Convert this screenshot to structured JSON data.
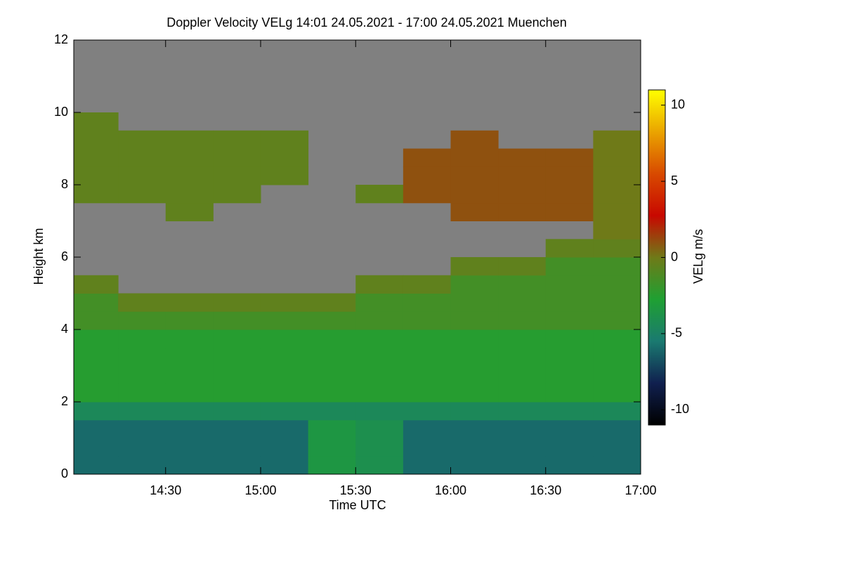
{
  "chart_data": {
    "type": "heatmap",
    "title": "Doppler Velocity VELg   14:01 24.05.2021 - 17:00 24.05.2021 Muenchen",
    "x_label": "Time UTC",
    "y_label": "Height km",
    "colorbar_label": "VELg m/s",
    "xbins": [
      "14:01",
      "14:15",
      "14:30",
      "14:45",
      "15:00",
      "15:15",
      "15:30",
      "15:45",
      "16:00",
      "16:15",
      "16:30",
      "16:45",
      "17:00"
    ],
    "ybins": [
      0,
      0.5,
      1,
      1.5,
      2,
      2.5,
      3,
      3.5,
      4,
      4.5,
      5,
      5.5,
      6,
      6.5,
      7,
      7.5,
      8,
      8.5,
      9,
      9.5,
      10,
      10.5,
      11,
      11.5,
      12
    ],
    "z": [
      [
        -6,
        -6,
        -6,
        -6,
        -6,
        -3.5,
        -4,
        -6,
        -6,
        -6,
        -6,
        -6
      ],
      [
        -6,
        -6,
        -6,
        -6,
        -6,
        -3.5,
        -4,
        -6,
        -6,
        -6,
        -6,
        -6
      ],
      [
        -6,
        -6,
        -6,
        -6,
        -6,
        -3.5,
        -4,
        -6,
        -6,
        -6,
        -6,
        -6
      ],
      [
        -4.5,
        -4.5,
        -4.5,
        -4.5,
        -4.5,
        -4.5,
        -4.5,
        -4.5,
        -4.5,
        -4.5,
        -4.5,
        -4.5
      ],
      [
        -2.5,
        -2.5,
        -2.5,
        -2.5,
        -2.5,
        -2.5,
        -2.5,
        -2.5,
        -2.5,
        -2.5,
        -2.5,
        -2.5
      ],
      [
        -2.5,
        -2.5,
        -2.5,
        -2.5,
        -2.5,
        -2.5,
        -2.5,
        -2.5,
        -2.5,
        -2.5,
        -2.5,
        -2.5
      ],
      [
        -2.5,
        -2.5,
        -2.5,
        -2.5,
        -2.5,
        -2.5,
        -2.5,
        -2.5,
        -2.5,
        -2.5,
        -2.5,
        -2.5
      ],
      [
        -2.5,
        -2.5,
        -2.5,
        -2.5,
        -2.5,
        -2.5,
        -2.5,
        -2.5,
        -2.5,
        -2.5,
        -2.5,
        -2.5
      ],
      [
        -1.5,
        -1.5,
        -1.5,
        -1.5,
        -1.5,
        -1.5,
        -1.5,
        -1.5,
        -1.5,
        -1.5,
        -1.5,
        -1.5
      ],
      [
        -1.5,
        -0.5,
        -0.5,
        -0.5,
        -0.5,
        -0.5,
        -1.5,
        -1.5,
        -1.5,
        -1.5,
        -1.5,
        -1.5
      ],
      [
        -0.5,
        null,
        null,
        null,
        null,
        null,
        -0.5,
        -0.5,
        -1.5,
        -1.5,
        -1.5,
        -1.5
      ],
      [
        null,
        null,
        null,
        null,
        null,
        null,
        null,
        null,
        -0.5,
        -0.5,
        -1.5,
        -1.5
      ],
      [
        null,
        null,
        null,
        null,
        null,
        null,
        null,
        null,
        null,
        null,
        -0.5,
        -0.5
      ],
      [
        null,
        null,
        null,
        null,
        null,
        null,
        null,
        null,
        null,
        null,
        null,
        0
      ],
      [
        null,
        null,
        -0.5,
        null,
        null,
        null,
        null,
        null,
        1,
        1,
        1,
        0
      ],
      [
        -0.5,
        -0.5,
        -0.5,
        -0.5,
        null,
        null,
        -0.5,
        1,
        1,
        1,
        1,
        0
      ],
      [
        -0.5,
        -0.5,
        -0.5,
        -0.5,
        -0.5,
        null,
        null,
        1,
        1,
        1,
        1,
        0
      ],
      [
        -0.5,
        -0.5,
        -0.5,
        -0.5,
        -0.5,
        null,
        null,
        1,
        1,
        1,
        1,
        0
      ],
      [
        -0.5,
        -0.5,
        -0.5,
        -0.5,
        -0.5,
        null,
        null,
        null,
        1,
        null,
        null,
        0
      ],
      [
        -0.5,
        null,
        null,
        null,
        null,
        null,
        null,
        null,
        null,
        null,
        null,
        null
      ],
      [
        null,
        null,
        null,
        null,
        null,
        null,
        null,
        null,
        null,
        null,
        null,
        null
      ],
      [
        null,
        null,
        null,
        null,
        null,
        null,
        null,
        null,
        null,
        null,
        null,
        null
      ],
      [
        null,
        null,
        null,
        null,
        null,
        null,
        null,
        null,
        null,
        null,
        null,
        null
      ],
      [
        null,
        null,
        null,
        null,
        null,
        null,
        null,
        null,
        null,
        null,
        null,
        null
      ]
    ],
    "xlim": [
      "14:01",
      "17:00"
    ],
    "xticks": [
      "14:30",
      "15:00",
      "15:30",
      "16:00",
      "16:30",
      "17:00"
    ],
    "ylim": [
      0,
      12
    ],
    "yticks": [
      0,
      2,
      4,
      6,
      8,
      10,
      12
    ],
    "zlim": [
      -11,
      11
    ],
    "zticks": [
      -10,
      -5,
      0,
      5,
      10
    ],
    "colormap": [
      "#000000",
      "#10204f",
      "#1a7a70",
      "#1fa032",
      "#6f7a18",
      "#c80800",
      "#d84a00",
      "#eaa400",
      "#ffff00"
    ],
    "missing_color": "#808080"
  }
}
